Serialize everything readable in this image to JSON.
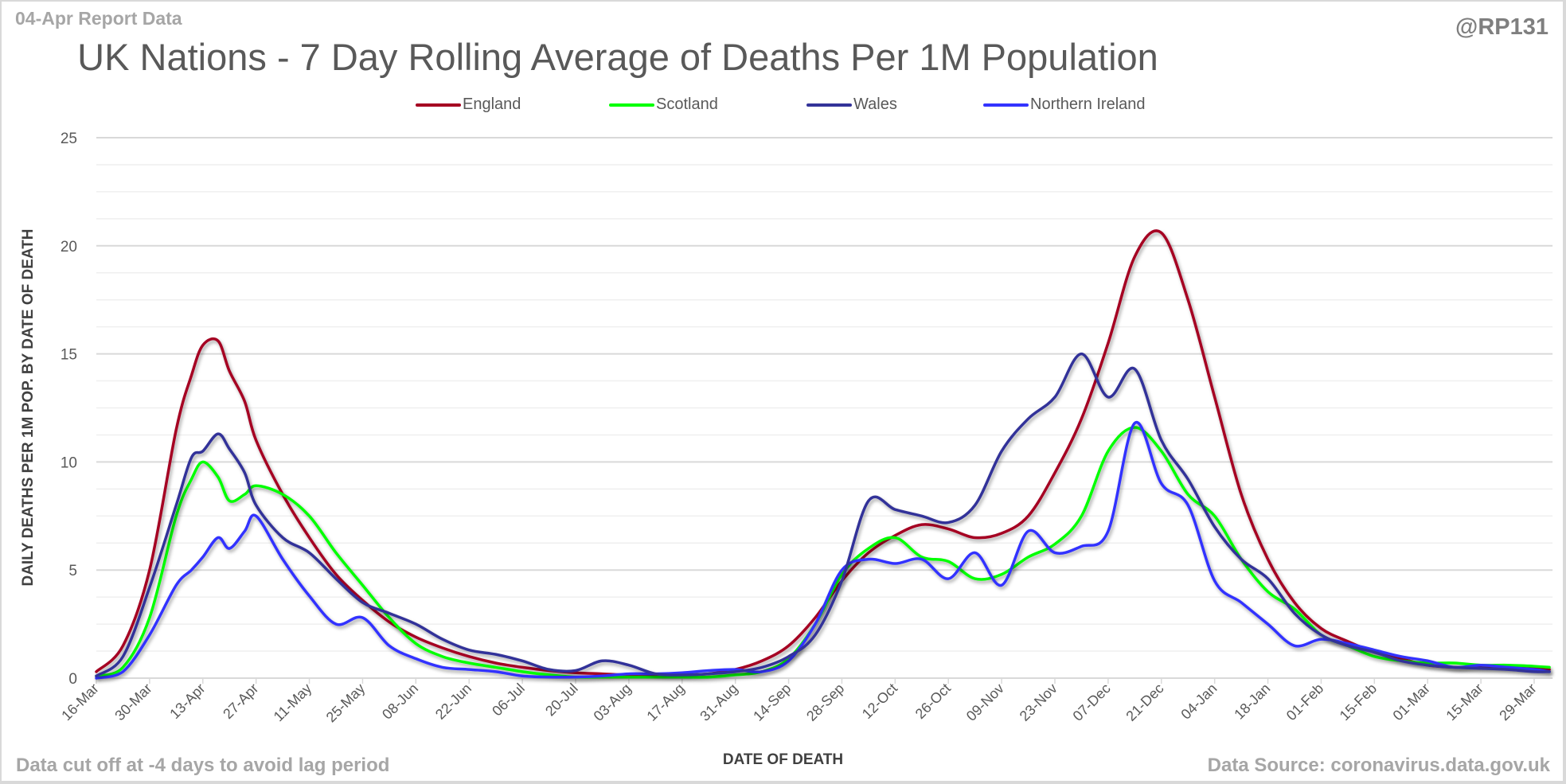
{
  "header": {
    "report_date": "04-Apr Report Data",
    "handle": "@RP131"
  },
  "footer": {
    "note": "Data cut off at -4 days to avoid lag period",
    "source": "Data Source: coronavirus.data.gov.uk"
  },
  "chart_data": {
    "type": "line",
    "title": "UK Nations - 7 Day Rolling Average of Deaths Per 1M Population",
    "xlabel": "DATE OF DEATH",
    "ylabel": "DAILY DEATHS PER 1M POP. BY DATE OF DEATH",
    "ylim": [
      0,
      25
    ],
    "yticks": [
      0,
      5,
      10,
      15,
      20,
      25
    ],
    "minor_gridlines_step": 1.25,
    "grid": true,
    "legend_position": "top-center",
    "x_start": "16-Mar",
    "x_tick_interval_days": 14,
    "xtick_labels": [
      "16-Mar",
      "30-Mar",
      "13-Apr",
      "27-Apr",
      "11-May",
      "25-May",
      "08-Jun",
      "22-Jun",
      "06-Jul",
      "20-Jul",
      "03-Aug",
      "17-Aug",
      "31-Aug",
      "14-Sep",
      "28-Sep",
      "12-Oct",
      "26-Oct",
      "09-Nov",
      "23-Nov",
      "07-Dec",
      "21-Dec",
      "04-Jan",
      "18-Jan",
      "01-Feb",
      "15-Feb",
      "01-Mar",
      "15-Mar",
      "29-Mar"
    ],
    "x_days": [
      0,
      7,
      14,
      21,
      25,
      28,
      32,
      35,
      39,
      42,
      49,
      56,
      63,
      70,
      77,
      84,
      91,
      98,
      105,
      112,
      119,
      126,
      133,
      140,
      147,
      154,
      161,
      168,
      175,
      182,
      189,
      196,
      203,
      210,
      217,
      224,
      231,
      238,
      245,
      252,
      259,
      266,
      273,
      280,
      287,
      294,
      301,
      308,
      315,
      322,
      329,
      336,
      343,
      350,
      357,
      364,
      371,
      378,
      382
    ],
    "series": [
      {
        "name": "England",
        "color": "#a50021",
        "values": [
          0.3,
          1.5,
          5.0,
          11.5,
          14.0,
          15.4,
          15.6,
          14.2,
          12.8,
          11.0,
          8.5,
          6.5,
          4.8,
          3.6,
          2.6,
          1.9,
          1.4,
          1.0,
          0.7,
          0.5,
          0.35,
          0.25,
          0.2,
          0.15,
          0.15,
          0.15,
          0.2,
          0.4,
          0.8,
          1.5,
          2.8,
          4.5,
          5.8,
          6.6,
          7.1,
          6.9,
          6.5,
          6.7,
          7.5,
          9.5,
          12.0,
          15.5,
          19.5,
          20.6,
          17.5,
          13.0,
          8.5,
          5.5,
          3.5,
          2.3,
          1.7,
          1.2,
          0.9,
          0.6,
          0.5,
          0.5,
          0.5,
          0.45,
          0.4
        ]
      },
      {
        "name": "Scotland",
        "color": "#00ff00",
        "values": [
          0.1,
          0.5,
          2.8,
          7.5,
          9.2,
          10.0,
          9.3,
          8.2,
          8.5,
          8.9,
          8.5,
          7.5,
          5.8,
          4.3,
          2.8,
          1.6,
          1.0,
          0.7,
          0.5,
          0.3,
          0.15,
          0.05,
          0.05,
          0.05,
          0.05,
          0.05,
          0.05,
          0.15,
          0.3,
          0.9,
          2.5,
          4.8,
          6.0,
          6.5,
          5.6,
          5.4,
          4.6,
          4.8,
          5.6,
          6.2,
          7.5,
          10.5,
          11.6,
          10.5,
          8.5,
          7.5,
          5.5,
          4.0,
          3.2,
          2.0,
          1.5,
          1.0,
          0.8,
          0.7,
          0.7,
          0.6,
          0.6,
          0.55,
          0.5
        ]
      },
      {
        "name": "Wales",
        "color": "#333399",
        "values": [
          0.1,
          1.0,
          4.2,
          8.0,
          10.2,
          10.5,
          11.3,
          10.6,
          9.5,
          8.0,
          6.5,
          5.8,
          4.6,
          3.5,
          3.0,
          2.5,
          1.8,
          1.3,
          1.1,
          0.8,
          0.4,
          0.35,
          0.8,
          0.6,
          0.2,
          0.15,
          0.2,
          0.3,
          0.5,
          1.0,
          2.0,
          4.5,
          8.2,
          7.8,
          7.5,
          7.2,
          8.0,
          10.5,
          12.0,
          13.0,
          15.0,
          13.0,
          14.3,
          11.0,
          9.2,
          7.0,
          5.5,
          4.6,
          3.0,
          2.0,
          1.5,
          1.2,
          0.8,
          0.6,
          0.5,
          0.45,
          0.4,
          0.3,
          0.3
        ]
      },
      {
        "name": "Northern Ireland",
        "color": "#3333ff",
        "values": [
          0.0,
          0.3,
          2.0,
          4.3,
          5.0,
          5.6,
          6.5,
          6.0,
          6.8,
          7.5,
          5.5,
          3.8,
          2.5,
          2.8,
          1.5,
          0.9,
          0.5,
          0.4,
          0.3,
          0.1,
          0.05,
          0.05,
          0.1,
          0.2,
          0.2,
          0.25,
          0.35,
          0.4,
          0.3,
          0.8,
          2.5,
          5.0,
          5.5,
          5.3,
          5.5,
          4.6,
          5.8,
          4.3,
          6.8,
          5.8,
          6.1,
          6.8,
          11.8,
          9.0,
          8.0,
          4.5,
          3.5,
          2.5,
          1.5,
          1.8,
          1.6,
          1.3,
          1.0,
          0.8,
          0.5,
          0.6,
          0.5,
          0.4,
          0.3
        ]
      }
    ]
  }
}
